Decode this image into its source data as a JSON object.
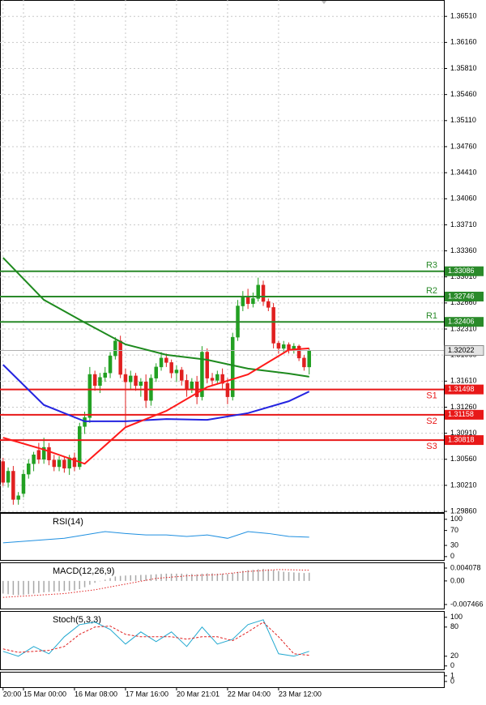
{
  "chart_data": [
    {
      "type": "candlestick",
      "bull_color": "#22a022",
      "bear_color": "#e02020",
      "open": [
        1.3053,
        1.3025,
        1.304,
        1.3002,
        1.301,
        1.3036,
        1.305,
        1.3068,
        1.3056,
        1.3072,
        1.3055,
        1.3046,
        1.3055,
        1.3044,
        1.3058,
        1.3046,
        1.31,
        1.3112,
        1.317,
        1.3155,
        1.3166,
        1.3172,
        1.3195,
        1.3215,
        1.317,
        1.316,
        1.3168,
        1.3155,
        1.316,
        1.3135,
        1.3165,
        1.318,
        1.3192,
        1.3186,
        1.3172,
        1.3176,
        1.3162,
        1.315,
        1.316,
        1.314,
        1.32,
        1.3165,
        1.3162,
        1.317,
        1.3158,
        1.314,
        1.322,
        1.3262,
        1.3275,
        1.3265,
        1.3272,
        1.329,
        1.3268,
        1.326,
        1.3212,
        1.3205,
        1.321,
        1.3202,
        1.3208,
        1.3192,
        1.318
      ],
      "high": [
        1.3058,
        1.3045,
        1.3047,
        1.3012,
        1.3042,
        1.3056,
        1.3066,
        1.3078,
        1.3085,
        1.3078,
        1.3062,
        1.306,
        1.306,
        1.3062,
        1.3065,
        1.3105,
        1.312,
        1.318,
        1.3175,
        1.3172,
        1.318,
        1.32,
        1.322,
        1.3222,
        1.3178,
        1.3175,
        1.3172,
        1.3165,
        1.317,
        1.317,
        1.3185,
        1.32,
        1.3198,
        1.319,
        1.3182,
        1.318,
        1.317,
        1.3165,
        1.3168,
        1.3208,
        1.3205,
        1.3172,
        1.3175,
        1.3178,
        1.3165,
        1.3226,
        1.327,
        1.3282,
        1.3285,
        1.328,
        1.33,
        1.3296,
        1.3272,
        1.3266,
        1.3215,
        1.3215,
        1.3213,
        1.3212,
        1.321,
        1.3196,
        1.3205
      ],
      "low": [
        1.302,
        1.3018,
        1.2995,
        1.2995,
        1.3005,
        1.303,
        1.304,
        1.305,
        1.305,
        1.3048,
        1.304,
        1.304,
        1.3038,
        1.3035,
        1.304,
        1.3042,
        1.309,
        1.3105,
        1.3148,
        1.3145,
        1.316,
        1.3165,
        1.319,
        1.3165,
        1.31,
        1.315,
        1.3148,
        1.314,
        1.3125,
        1.3128,
        1.316,
        1.3175,
        1.318,
        1.3165,
        1.316,
        1.3155,
        1.314,
        1.3145,
        1.313,
        1.3135,
        1.3158,
        1.3155,
        1.3158,
        1.315,
        1.313,
        1.3135,
        1.3215,
        1.3255,
        1.3258,
        1.326,
        1.3268,
        1.3262,
        1.3255,
        1.3205,
        1.3198,
        1.32,
        1.3198,
        1.3198,
        1.3188,
        1.3175,
        1.317
      ],
      "close": [
        1.3025,
        1.304,
        1.3002,
        1.3007,
        1.3036,
        1.305,
        1.3062,
        1.3056,
        1.3072,
        1.3055,
        1.3046,
        1.3055,
        1.3044,
        1.3058,
        1.3046,
        1.31,
        1.3112,
        1.317,
        1.3155,
        1.3166,
        1.3172,
        1.3195,
        1.3215,
        1.317,
        1.316,
        1.3168,
        1.3155,
        1.316,
        1.3135,
        1.3165,
        1.318,
        1.3192,
        1.3186,
        1.3172,
        1.3176,
        1.3162,
        1.315,
        1.316,
        1.314,
        1.32,
        1.3165,
        1.3162,
        1.317,
        1.3158,
        1.314,
        1.322,
        1.3262,
        1.3275,
        1.3265,
        1.3272,
        1.329,
        1.3268,
        1.326,
        1.3212,
        1.3205,
        1.321,
        1.3202,
        1.3208,
        1.3192,
        1.318,
        1.3202
      ],
      "series": [
        {
          "color": "#1e8a1e",
          "x": [
            0,
            8,
            16,
            24,
            32,
            40,
            48,
            56,
            60
          ],
          "values": [
            1.33268,
            1.32702,
            1.32398,
            1.32104,
            1.31963,
            1.31897,
            1.31778,
            1.31712,
            1.31669
          ]
        },
        {
          "color": "#2424e0",
          "x": [
            0,
            8,
            16,
            24,
            32,
            40,
            48,
            56,
            60
          ],
          "values": [
            1.3183,
            1.3129,
            1.3107,
            1.3107,
            1.311,
            1.3109,
            1.3118,
            1.3134,
            1.3147
          ]
        },
        {
          "color": "#ff1a1a",
          "x": [
            0,
            8,
            16,
            24,
            32,
            40,
            48,
            56,
            60
          ],
          "values": [
            1.3085,
            1.3069,
            1.305,
            1.3099,
            1.3121,
            1.3153,
            1.317,
            1.3203,
            1.3205
          ]
        }
      ],
      "levels": [
        {
          "label": "R3",
          "value": 1.33086,
          "color": "#2a8a2a"
        },
        {
          "label": "R2",
          "value": 1.32746,
          "color": "#2a8a2a"
        },
        {
          "label": "R1",
          "value": 1.32406,
          "color": "#2a8a2a"
        },
        {
          "label": "S1",
          "value": 1.31498,
          "color": "#e81818"
        },
        {
          "label": "S2",
          "value": 1.31158,
          "color": "#e81818"
        },
        {
          "label": "S3",
          "value": 1.30818,
          "color": "#e81818"
        }
      ],
      "current_price": 1.32022,
      "xlim": [
        -0.6,
        86.4
      ],
      "xticks": [
        {
          "value": 0,
          "label": "20:00"
        },
        {
          "value": 4,
          "label": "15 Mar 00:00"
        },
        {
          "value": 14,
          "label": "16 Mar 08:00"
        },
        {
          "value": 24,
          "label": "17 Mar 16:00"
        },
        {
          "value": 34,
          "label": "20 Mar 21:01"
        },
        {
          "value": 44,
          "label": "22 Mar 04:00"
        },
        {
          "value": 54,
          "label": "23 Mar 12:00"
        }
      ],
      "ylim": [
        1.2985,
        1.3673
      ],
      "yticks": [
        {
          "value": 1.3651,
          "label": "1.36510"
        },
        {
          "value": 1.3616,
          "label": "1.36160"
        },
        {
          "value": 1.3581,
          "label": "1.35810"
        },
        {
          "value": 1.3546,
          "label": "1.35460"
        },
        {
          "value": 1.3511,
          "label": "1.35110"
        },
        {
          "value": 1.3476,
          "label": "1.34760"
        },
        {
          "value": 1.3441,
          "label": "1.34410"
        },
        {
          "value": 1.3406,
          "label": "1.34060"
        },
        {
          "value": 1.3371,
          "label": "1.33710"
        },
        {
          "value": 1.3336,
          "label": "1.33360"
        },
        {
          "value": 1.3301,
          "label": "1.33010"
        },
        {
          "value": 1.3266,
          "label": "1.32660"
        },
        {
          "value": 1.3231,
          "label": "1.32310"
        },
        {
          "value": 1.3196,
          "label": "1.31960"
        },
        {
          "value": 1.3161,
          "label": "1.31610"
        },
        {
          "value": 1.3126,
          "label": "1.31260"
        },
        {
          "value": 1.3091,
          "label": "1.30910"
        },
        {
          "value": 1.3056,
          "label": "1.30560"
        },
        {
          "value": 1.3021,
          "label": "1.30210"
        },
        {
          "value": 1.2986,
          "label": "1.29860"
        }
      ],
      "grid": true
    },
    {
      "type": "line",
      "title": "RSI(14)",
      "series": [
        {
          "color": "#1e8fe0",
          "x": [
            0,
            4,
            8,
            12,
            16,
            20,
            24,
            28,
            32,
            36,
            40,
            44,
            48,
            52,
            56,
            60
          ],
          "values": [
            37,
            41,
            45,
            49,
            58,
            67,
            62,
            58,
            58,
            54,
            58,
            49,
            67,
            62,
            54,
            52
          ]
        }
      ],
      "xlim": [
        -0.6,
        86.4
      ],
      "ylim": [
        -9,
        117
      ],
      "yticks": [
        100,
        70,
        30,
        0
      ]
    },
    {
      "type": "bar",
      "title": "MACD(12,26,9)",
      "color": "#a8a8a8",
      "values": [
        -0.004,
        -0.0042,
        -0.0044,
        -0.0045,
        -0.0044,
        -0.0042,
        -0.004,
        -0.0038,
        -0.0036,
        -0.0035,
        -0.0034,
        -0.0033,
        -0.0032,
        -0.0031,
        -0.003,
        -0.0026,
        -0.002,
        -0.0012,
        -0.0006,
        -0.0001,
        0.0004,
        0.0009,
        0.0014,
        0.0016,
        0.0017,
        0.0018,
        0.0018,
        0.0019,
        0.0019,
        0.002,
        0.0021,
        0.0022,
        0.0023,
        0.0023,
        0.0023,
        0.0023,
        0.0022,
        0.0022,
        0.0021,
        0.0023,
        0.0024,
        0.0024,
        0.0023,
        0.0023,
        0.0022,
        0.0025,
        0.0029,
        0.0032,
        0.0034,
        0.0035,
        0.0037,
        0.0038,
        0.0037,
        0.0034,
        0.0031,
        0.0029,
        0.0028,
        0.0027,
        0.0026,
        0.0025,
        0.0026
      ],
      "series": [
        {
          "color": "#e02020",
          "dash": "dotted",
          "x": [
            0,
            6,
            12,
            18,
            24,
            30,
            36,
            42,
            48,
            54,
            60
          ],
          "values": [
            -0.0052,
            -0.0046,
            -0.004,
            -0.0028,
            -0.001,
            0.0008,
            0.0016,
            0.002,
            0.003,
            0.0036,
            0.0034
          ]
        }
      ],
      "xlim": [
        -0.6,
        86.4
      ],
      "ylim": [
        -0.00875,
        0.00587
      ],
      "yticks": [
        0.004078,
        {
          "value": 0,
          "label": "0.00"
        },
        -0.007466
      ]
    },
    {
      "type": "line",
      "title": "Stoch(5,3,3)",
      "series": [
        {
          "color": "#20a8d0",
          "x": [
            0,
            3,
            6,
            9,
            12,
            15,
            18,
            21,
            24,
            27,
            30,
            33,
            36,
            39,
            42,
            45,
            48,
            51,
            54,
            57,
            60
          ],
          "values": [
            30,
            20,
            40,
            25,
            60,
            85,
            90,
            75,
            45,
            70,
            50,
            70,
            40,
            80,
            45,
            55,
            85,
            95,
            25,
            20,
            30
          ]
        },
        {
          "color": "#e02020",
          "dash": "dashed",
          "x": [
            0,
            3,
            6,
            9,
            12,
            15,
            18,
            21,
            24,
            27,
            30,
            33,
            36,
            39,
            42,
            45,
            48,
            51,
            54,
            57,
            60
          ],
          "values": [
            35,
            28,
            30,
            32,
            40,
            65,
            80,
            82,
            65,
            60,
            60,
            60,
            55,
            60,
            60,
            52,
            70,
            90,
            60,
            25,
            22
          ]
        }
      ],
      "xlim": [
        -0.6,
        86.4
      ],
      "ylim": [
        -7,
        113
      ],
      "yticks": [
        100,
        80,
        20,
        0
      ]
    },
    {
      "type": "line",
      "series": [],
      "xlim": [
        -0.6,
        86.4
      ],
      "ylim": [
        -1,
        1.7
      ],
      "yticks": [
        1,
        0
      ]
    }
  ]
}
